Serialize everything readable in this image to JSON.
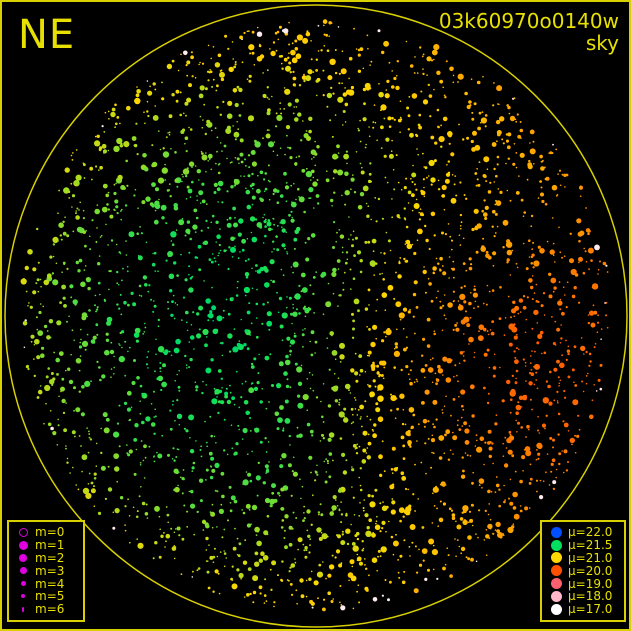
{
  "direction_label": "NE",
  "title": {
    "line1": "03k60970o0140w",
    "line2": "sky"
  },
  "chart_data": {
    "type": "scatter",
    "title": "03k60970o0140w sky",
    "description_in_plot": "all-sky star map, color = sky brightness mu, size = magnitude m",
    "frame_color": "#d8d000",
    "background": "#000000",
    "magnitude_legend": [
      {
        "label": "m=0",
        "style": "ring"
      },
      {
        "label": "m=1"
      },
      {
        "label": "m=2"
      },
      {
        "label": "m=3"
      },
      {
        "label": "m=4"
      },
      {
        "label": "m=5"
      },
      {
        "label": "m=6"
      }
    ],
    "magnitude_legend_color": "#e000e0",
    "brightness_legend": [
      {
        "label": "μ=22.0",
        "mu": 22.0,
        "color": "#0050ff"
      },
      {
        "label": "μ=21.5",
        "mu": 21.5,
        "color": "#00e060"
      },
      {
        "label": "μ=21.0",
        "mu": 21.0,
        "color": "#ffd800"
      },
      {
        "label": "μ=20.0",
        "mu": 20.0,
        "color": "#ff5000"
      },
      {
        "label": "μ=19.0",
        "mu": 19.0,
        "color": "#ff6070"
      },
      {
        "label": "μ=18.0",
        "mu": 18.0,
        "color": "#ffb8c8"
      },
      {
        "label": "μ=17.0",
        "mu": 17.0,
        "color": "#ffffff"
      }
    ]
  }
}
